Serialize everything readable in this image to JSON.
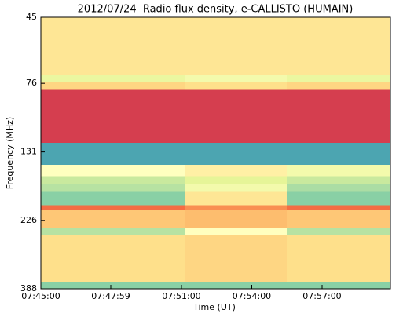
{
  "chart_data": {
    "type": "heatmap",
    "title": "2012/07/24  Radio flux density, e-CALLISTO (HUMAIN)",
    "xlabel": "Time (UT)",
    "ylabel": "Frequency (MHz)",
    "xlim": [
      0,
      895
    ],
    "xticks": [
      {
        "value": 0,
        "label": "07:45:00"
      },
      {
        "value": 179,
        "label": "07:47:59"
      },
      {
        "value": 360,
        "label": "07:51:00"
      },
      {
        "value": 540,
        "label": "07:54:00"
      },
      {
        "value": 720,
        "label": "07:57:00"
      }
    ],
    "ylim": [
      45,
      388
    ],
    "yticks": [
      45,
      76,
      131,
      226,
      388
    ],
    "yscale": "log",
    "yinvert": true,
    "colormap": "Spectral",
    "clim": [
      0,
      1
    ],
    "time_edges": [
      0,
      370,
      630,
      895
    ],
    "freq_edges": [
      45,
      71,
      75,
      80,
      122,
      145,
      159,
      169,
      180,
      200,
      208,
      239,
      254,
      369,
      388
    ],
    "values": [
      [
        0.42,
        0.42,
        0.42
      ],
      [
        0.58,
        0.55,
        0.58
      ],
      [
        0.38,
        0.4,
        0.38
      ],
      [
        0.1,
        0.1,
        0.1
      ],
      [
        0.85,
        0.85,
        0.85
      ],
      [
        0.5,
        0.45,
        0.55
      ],
      [
        0.65,
        0.6,
        0.65
      ],
      [
        0.68,
        0.55,
        0.7
      ],
      [
        0.75,
        0.42,
        0.75
      ],
      [
        0.2,
        0.25,
        0.2
      ],
      [
        0.35,
        0.33,
        0.35
      ],
      [
        0.68,
        0.5,
        0.68
      ],
      [
        0.4,
        0.38,
        0.4
      ],
      [
        0.75,
        0.75,
        0.75
      ]
    ]
  }
}
